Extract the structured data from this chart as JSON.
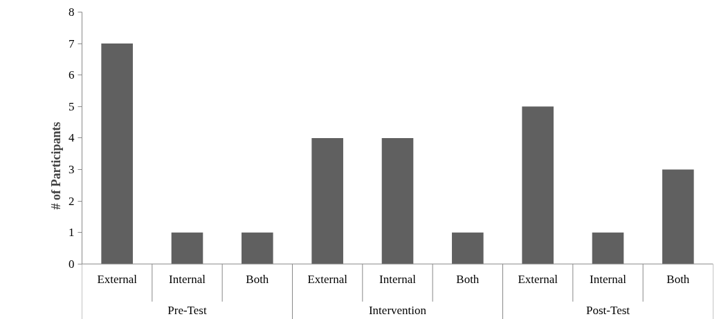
{
  "chart_data": {
    "type": "bar",
    "ylabel": "# of Participants",
    "categories": [
      "External",
      "Internal",
      "Both",
      "External",
      "Internal",
      "Both",
      "External",
      "Internal",
      "Both"
    ],
    "values": [
      7,
      1,
      1,
      4,
      4,
      1,
      5,
      1,
      3
    ],
    "color": "#606060",
    "ylim": [
      0,
      8
    ],
    "yticks": [
      0,
      1,
      2,
      3,
      4,
      5,
      6,
      7,
      8
    ],
    "grid": false,
    "annotations": [
      "Pre-Test",
      "Intervention",
      "Post-Test"
    ]
  }
}
